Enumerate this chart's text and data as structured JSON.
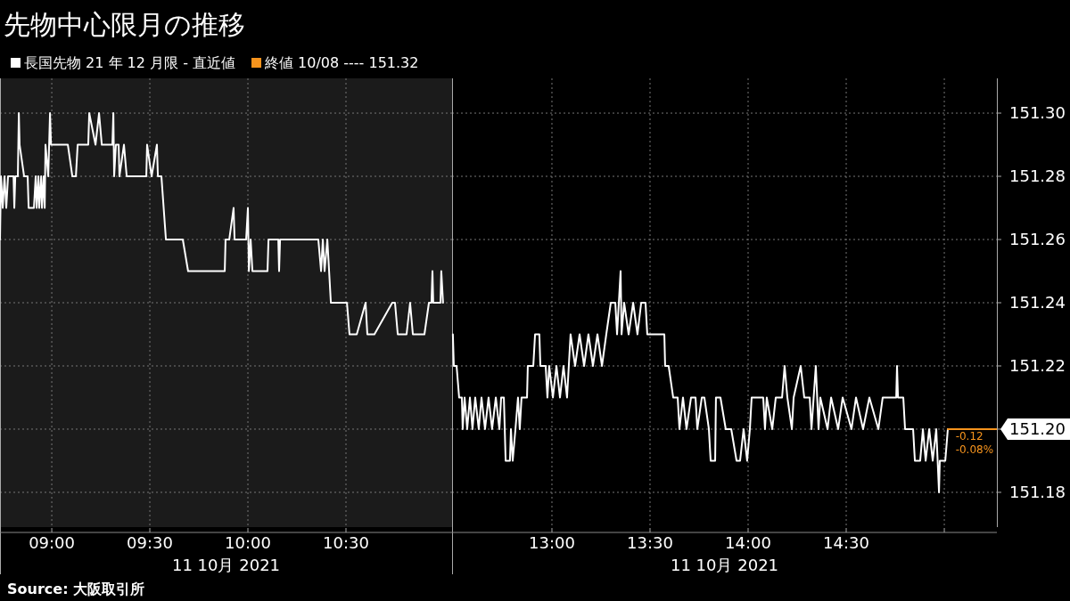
{
  "chart_data": [
    {
      "type": "line",
      "title": "先物中心限月の推移",
      "xlabel": "11 10月 2021",
      "legend": "top left",
      "grid": true,
      "tick_labels": "x",
      "line_style": "solid",
      "marker": "none",
      "xlim": [
        8.736,
        11.041
      ],
      "ylim": [
        151.169,
        151.311
      ],
      "xticks": [
        {
          "value": 9,
          "label": "09:00"
        },
        {
          "value": 9.5,
          "label": "09:30"
        },
        {
          "value": 10,
          "label": "10:00"
        },
        {
          "value": 10.5,
          "label": "10:30"
        }
      ],
      "yticks": [
        151.18,
        151.2,
        151.22,
        151.24,
        151.26,
        151.28,
        151.3
      ],
      "bands": [
        {
          "axis": "x",
          "from": 8.736,
          "to": 11.041,
          "color": "#1b1b1b"
        }
      ],
      "annotations": [
        "Source: 大阪取引所"
      ],
      "series": [
        {
          "name": "長国先物 21 年 12 月限 - 直近値",
          "color": "#ffffff",
          "x": [
            8.736,
            8.741,
            8.75,
            8.759,
            8.768,
            8.777,
            8.805,
            8.809,
            8.814,
            8.827,
            8.832,
            8.836,
            8.859,
            8.877,
            8.882,
            8.909,
            8.918,
            8.923,
            8.932,
            8.936,
            8.946,
            8.95,
            8.959,
            8.964,
            8.968,
            8.982,
            8.991,
            8.996,
            9.082,
            9.105,
            9.123,
            9.132,
            9.186,
            9.191,
            9.223,
            9.241,
            9.255,
            9.309,
            9.314,
            9.318,
            9.327,
            9.341,
            9.345,
            9.368,
            9.382,
            9.482,
            9.486,
            9.509,
            9.536,
            9.541,
            9.559,
            9.582,
            9.668,
            9.695,
            9.882,
            9.886,
            9.905,
            9.927,
            9.932,
            9.991,
            10.0,
            10.005,
            10.014,
            10.023,
            10.1,
            10.105,
            10.155,
            10.159,
            10.164,
            10.359,
            10.373,
            10.382,
            10.391,
            10.405,
            10.423,
            10.505,
            10.518,
            10.555,
            10.6,
            10.609,
            10.645,
            10.736,
            10.75,
            10.764,
            10.809,
            10.827,
            10.841,
            10.9,
            10.923,
            10.936,
            10.941,
            10.945,
            10.982,
            10.986,
            10.995
          ],
          "values": [
            151.26,
            151.28,
            151.27,
            151.28,
            151.27,
            151.28,
            151.28,
            151.27,
            151.28,
            151.28,
            151.3,
            151.29,
            151.28,
            151.28,
            151.27,
            151.27,
            151.28,
            151.27,
            151.28,
            151.27,
            151.28,
            151.27,
            151.28,
            151.27,
            151.29,
            151.28,
            151.3,
            151.29,
            151.29,
            151.28,
            151.28,
            151.29,
            151.29,
            151.3,
            151.29,
            151.3,
            151.29,
            151.29,
            151.3,
            151.28,
            151.29,
            151.29,
            151.28,
            151.29,
            151.28,
            151.28,
            151.29,
            151.28,
            151.29,
            151.28,
            151.28,
            151.26,
            151.26,
            151.25,
            151.25,
            151.26,
            151.26,
            151.27,
            151.26,
            151.26,
            151.27,
            151.25,
            151.26,
            151.25,
            151.25,
            151.26,
            151.26,
            151.25,
            151.26,
            151.26,
            151.25,
            151.26,
            151.25,
            151.26,
            151.24,
            151.24,
            151.23,
            151.23,
            151.24,
            151.23,
            151.23,
            151.24,
            151.24,
            151.23,
            151.23,
            151.24,
            151.23,
            151.23,
            151.24,
            151.24,
            151.25,
            151.24,
            151.24,
            151.25,
            151.24
          ]
        }
      ]
    },
    {
      "type": "line",
      "xlabel": "11 10月 2021",
      "grid": true,
      "line_style": "solid",
      "marker": "none",
      "xlim": [
        12.491,
        15.268
      ],
      "ylim": [
        151.169,
        151.311
      ],
      "xticks": [
        {
          "value": 13,
          "label": "13:00"
        },
        {
          "value": 13.5,
          "label": "13:30"
        },
        {
          "value": 14,
          "label": "14:00"
        },
        {
          "value": 14.5,
          "label": "14:30"
        },
        {
          "value": 15,
          "label": null
        }
      ],
      "yticks": [
        151.18,
        {
          "value": 151.2,
          "label": "151.20"
        },
        151.22,
        151.24,
        151.26,
        151.28,
        {
          "value": 151.3,
          "label": "151.30"
        }
      ],
      "annotations": [
        {
          "text": "-0.12",
          "x": 15.03,
          "y": 151.2
        },
        {
          "text": "-0.08%",
          "x": 15.03,
          "y": 151.2
        }
      ],
      "series": [
        {
          "color": "#ffffff",
          "x": [
            12.495,
            12.5,
            12.514,
            12.527,
            12.541,
            12.545,
            12.555,
            12.568,
            12.582,
            12.595,
            12.609,
            12.627,
            12.641,
            12.659,
            12.677,
            12.695,
            12.714,
            12.732,
            12.741,
            12.755,
            12.764,
            12.786,
            12.791,
            12.8,
            12.814,
            12.827,
            12.836,
            12.845,
            12.873,
            12.877,
            12.905,
            12.914,
            12.936,
            12.941,
            12.968,
            12.977,
            12.986,
            13.005,
            13.023,
            13.041,
            13.059,
            13.077,
            13.086,
            13.095,
            13.118,
            13.141,
            13.164,
            13.186,
            13.209,
            13.232,
            13.255,
            13.277,
            13.3,
            13.323,
            13.332,
            13.35,
            13.355,
            13.368,
            13.391,
            13.414,
            13.436,
            13.455,
            13.477,
            13.486,
            13.573,
            13.577,
            13.595,
            13.618,
            13.641,
            13.65,
            13.668,
            13.686,
            13.709,
            13.732,
            13.741,
            13.764,
            13.777,
            13.8,
            13.809,
            13.832,
            13.836,
            13.859,
            13.886,
            13.914,
            13.941,
            13.959,
            13.977,
            13.995,
            14.009,
            14.018,
            14.077,
            14.086,
            14.095,
            14.123,
            14.141,
            14.173,
            14.186,
            14.2,
            14.223,
            14.232,
            14.268,
            14.286,
            14.314,
            14.323,
            14.345,
            14.359,
            14.368,
            14.405,
            14.423,
            14.459,
            14.482,
            14.527,
            14.55,
            14.586,
            14.618,
            14.664,
            14.686,
            14.755,
            14.759,
            14.764,
            14.791,
            14.8,
            14.841,
            14.85,
            14.877,
            14.891,
            14.905,
            14.923,
            14.941,
            14.959,
            14.973,
            14.977,
            15.005,
            15.018
          ],
          "values": [
            151.23,
            151.22,
            151.22,
            151.21,
            151.21,
            151.2,
            151.21,
            151.2,
            151.21,
            151.2,
            151.21,
            151.2,
            151.21,
            151.2,
            151.21,
            151.2,
            151.21,
            151.2,
            151.21,
            151.21,
            151.19,
            151.19,
            151.2,
            151.19,
            151.2,
            151.21,
            151.2,
            151.21,
            151.21,
            151.22,
            151.22,
            151.23,
            151.23,
            151.22,
            151.22,
            151.21,
            151.22,
            151.21,
            151.22,
            151.21,
            151.22,
            151.21,
            151.22,
            151.23,
            151.22,
            151.23,
            151.22,
            151.23,
            151.22,
            151.23,
            151.22,
            151.23,
            151.24,
            151.24,
            151.23,
            151.25,
            151.23,
            151.24,
            151.23,
            151.24,
            151.23,
            151.24,
            151.24,
            151.23,
            151.23,
            151.22,
            151.22,
            151.21,
            151.21,
            151.2,
            151.21,
            151.2,
            151.21,
            151.21,
            151.2,
            151.21,
            151.21,
            151.2,
            151.19,
            151.19,
            151.21,
            151.21,
            151.2,
            151.2,
            151.19,
            151.19,
            151.2,
            151.19,
            151.2,
            151.21,
            151.21,
            151.2,
            151.21,
            151.2,
            151.21,
            151.21,
            151.22,
            151.21,
            151.2,
            151.21,
            151.22,
            151.21,
            151.21,
            151.2,
            151.22,
            151.2,
            151.21,
            151.2,
            151.21,
            151.2,
            151.21,
            151.2,
            151.21,
            151.2,
            151.21,
            151.2,
            151.21,
            151.21,
            151.22,
            151.21,
            151.21,
            151.2,
            151.2,
            151.19,
            151.19,
            151.2,
            151.19,
            151.2,
            151.19,
            151.2,
            151.18,
            151.19,
            151.19,
            151.2
          ]
        },
        {
          "name": "終値 10/08 ---- 151.32",
          "color": "#f7941d",
          "x": [
            15.018,
            15.268
          ],
          "values": [
            151.2,
            151.2
          ]
        }
      ]
    }
  ]
}
